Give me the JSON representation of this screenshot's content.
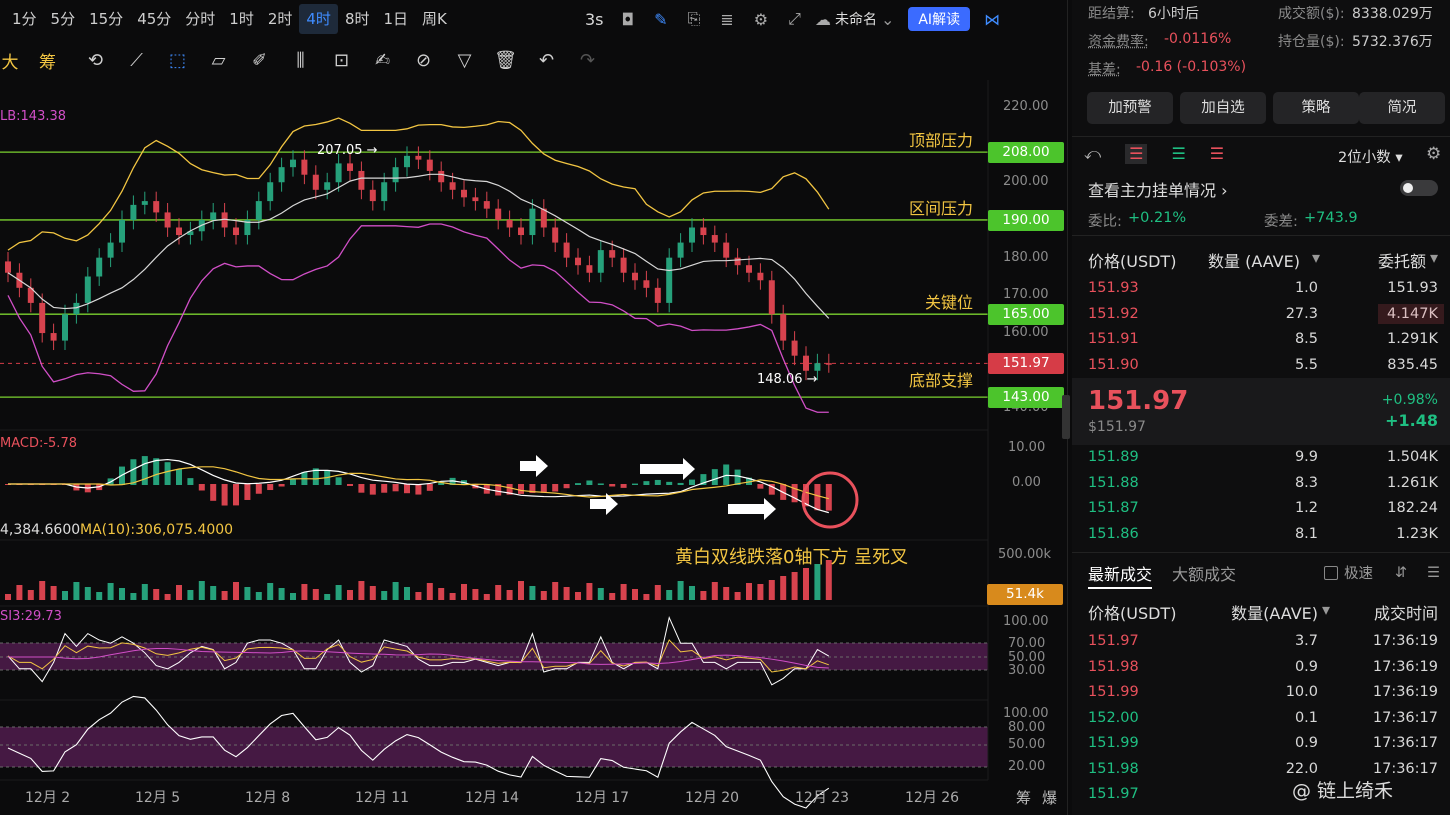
{
  "timeframes": [
    "1分",
    "5分",
    "15分",
    "45分",
    "分时",
    "1时",
    "2时",
    "4时",
    "8时",
    "1日",
    "周K"
  ],
  "active_timeframe": "4时",
  "topbar": {
    "interval": "3s",
    "layout_name": "未命名",
    "ai_label": "AI解读"
  },
  "toolbar_left": [
    "大",
    "筹"
  ],
  "price_axis": [
    "220.00",
    "200.00",
    "180.00",
    "170.00",
    "160.00",
    "140.00"
  ],
  "price_tags": [
    {
      "value": "208.00",
      "kind": "green"
    },
    {
      "value": "190.00",
      "kind": "green"
    },
    {
      "value": "165.00",
      "kind": "green"
    },
    {
      "value": "151.97",
      "kind": "red"
    },
    {
      "value": "143.00",
      "kind": "green"
    }
  ],
  "levels": [
    {
      "label": "顶部压力",
      "price": 208
    },
    {
      "label": "区间压力",
      "price": 190
    },
    {
      "label": "关键位",
      "price": 165
    },
    {
      "label": "底部支撑",
      "price": 143
    }
  ],
  "chart_labels": {
    "boll": "LB:143.38",
    "high_mark": "207.05 →",
    "low_mark": "148.06 →",
    "macd": "MACD:-5.78",
    "macd_axis_top": "10.00",
    "macd_axis_zero": "0.00",
    "vol_ma": "4,384.6600",
    "vol_ma10": "MA(10):306,075.4000",
    "vol_axis": "500.00k",
    "vol_tag": "51.4k",
    "rsi": "SI3:29.73",
    "rsi_axis": [
      "100.00",
      "70.00",
      "50.00",
      "30.00"
    ],
    "kdj_axis": [
      "100.00",
      "80.00",
      "50.00",
      "20.00"
    ],
    "annotation": "黄白双线跌落0轴下方 呈死叉"
  },
  "date_axis": [
    "12月 2",
    "12月 5",
    "12月 8",
    "12月 11",
    "12月 14",
    "12月 17",
    "12月 20",
    "12月 23",
    "12月 26"
  ],
  "date_axis_right": [
    "筹",
    "爆"
  ],
  "chart_data": {
    "type": "candlestick",
    "last_price": 151.97,
    "high_mark": 207.05,
    "low_mark": 148.06,
    "closes": [
      176,
      172,
      168,
      160,
      158,
      165,
      168,
      175,
      180,
      184,
      190,
      194,
      195,
      192,
      188,
      186,
      187,
      190,
      192,
      188,
      186,
      190,
      195,
      200,
      204,
      206,
      202,
      198,
      200,
      205,
      203,
      198,
      195,
      200,
      204,
      207,
      206,
      203,
      200,
      198,
      196,
      195,
      193,
      190,
      188,
      186,
      193,
      188,
      184,
      180,
      178,
      176,
      182,
      180,
      176,
      174,
      172,
      168,
      180,
      184,
      188,
      186,
      184,
      180,
      178,
      176,
      174,
      165,
      158,
      154,
      150,
      152,
      151.97
    ],
    "ylim": [
      138,
      225
    ]
  },
  "side": {
    "settle_label": "距结算:",
    "settle_value": "6小时后",
    "turnover_label": "成交额($):",
    "turnover_value": "8338.029万",
    "funding_label": "资金费率:",
    "funding_value": "-0.0116%",
    "oi_label": "持仓量($):",
    "oi_value": "5732.376万",
    "basis_label": "基差:",
    "basis_value": "-0.16 (-0.103%)",
    "buttons": [
      "加预警",
      "加自选",
      "策略",
      "简况"
    ],
    "decimals": "2位小数",
    "main_orders": "查看主力挂单情况",
    "ratio_label": "委比:",
    "ratio_value": "+0.21%",
    "diff_label": "委差:",
    "diff_value": "+743.9",
    "book_headers": [
      "价格(USDT)",
      "数量 (AAVE)",
      "委托额"
    ],
    "asks": [
      {
        "p": "151.93",
        "q": "1.0",
        "a": "151.93"
      },
      {
        "p": "151.92",
        "q": "27.3",
        "a": "4.147K"
      },
      {
        "p": "151.91",
        "q": "8.5",
        "a": "1.291K"
      },
      {
        "p": "151.90",
        "q": "5.5",
        "a": "835.45"
      }
    ],
    "last": "151.97",
    "last_usd": "$151.97",
    "change_pct": "+0.98%",
    "change_abs": "+1.48",
    "bids": [
      {
        "p": "151.89",
        "q": "9.9",
        "a": "1.504K"
      },
      {
        "p": "151.88",
        "q": "8.3",
        "a": "1.261K"
      },
      {
        "p": "151.87",
        "q": "1.2",
        "a": "182.24"
      },
      {
        "p": "151.86",
        "q": "8.1",
        "a": "1.23K"
      }
    ],
    "trade_tabs": [
      "最新成交",
      "大额成交"
    ],
    "fast_label": "极速",
    "trade_headers": [
      "价格(USDT)",
      "数量(AAVE)",
      "成交时间"
    ],
    "trades": [
      {
        "p": "151.97",
        "q": "3.7",
        "t": "17:36:19",
        "s": "red"
      },
      {
        "p": "151.98",
        "q": "0.9",
        "t": "17:36:19",
        "s": "red"
      },
      {
        "p": "151.99",
        "q": "10.0",
        "t": "17:36:19",
        "s": "red"
      },
      {
        "p": "152.00",
        "q": "0.1",
        "t": "17:36:17",
        "s": "green"
      },
      {
        "p": "151.99",
        "q": "0.9",
        "t": "17:36:17",
        "s": "green"
      },
      {
        "p": "151.98",
        "q": "22.0",
        "t": "17:36:17",
        "s": "green"
      },
      {
        "p": "151.97",
        "q": "",
        "t": "",
        "s": "green"
      }
    ],
    "watermark": "@ 链上绮禾"
  }
}
